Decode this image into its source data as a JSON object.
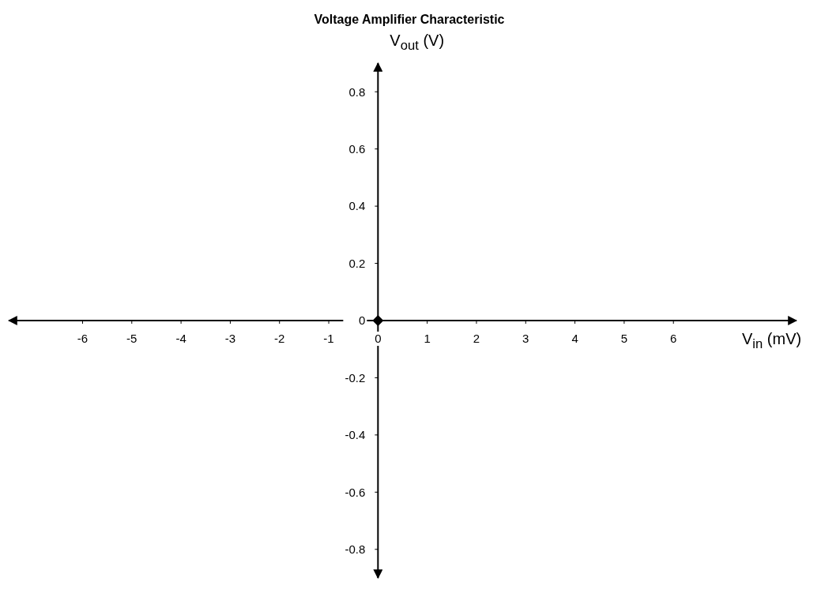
{
  "chart_data": {
    "type": "scatter",
    "title": "Voltage Amplifier Characteristic",
    "xlabel": "V$_{in}$ (mV)",
    "ylabel": "V$_{out}$ (V)",
    "xlim": [
      -7.5,
      8.5
    ],
    "xticks": [
      -6,
      -5,
      -4,
      -3,
      -2,
      -1,
      0,
      1,
      2,
      3,
      4,
      5,
      6
    ],
    "ylim": [
      -0.9,
      0.9
    ],
    "yticks": [
      -0.8,
      -0.6,
      -0.4,
      -0.2,
      0,
      0.2,
      0.4,
      0.6,
      0.8
    ],
    "marker": "diamond",
    "series": [
      {
        "color": "#000000",
        "x": [
          0
        ],
        "values": [
          0
        ]
      }
    ]
  }
}
